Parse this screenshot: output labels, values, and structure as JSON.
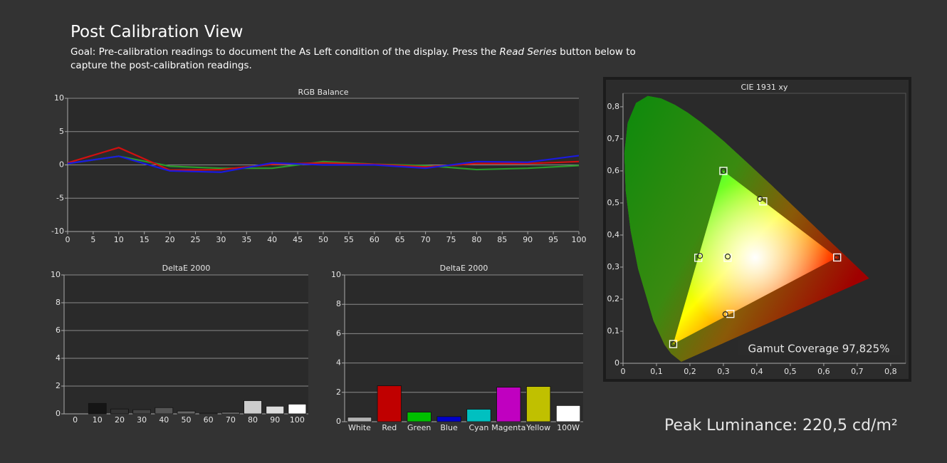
{
  "header": {
    "title": "Post Calibration View",
    "goal": [
      "Goal: Pre-calibration readings to document the As Left condition of the display. Press the ",
      "Read Series",
      " button below to capture the post-calibration readings."
    ]
  },
  "chart_data": [
    {
      "type": "line",
      "title": "RGB Balance",
      "x": [
        0,
        10,
        20,
        30,
        40,
        50,
        60,
        70,
        80,
        90,
        100
      ],
      "series": [
        {
          "color": "#2b9a2b",
          "values": [
            0.2,
            1.3,
            -0.2,
            -0.5,
            -0.5,
            0.5,
            0.1,
            -0.1,
            -0.7,
            -0.5,
            -0.1
          ]
        },
        {
          "color": "#d01010",
          "values": [
            0.3,
            2.6,
            -0.8,
            -0.7,
            0.1,
            0.3,
            0.1,
            -0.3,
            0.2,
            0.2,
            0.5
          ]
        },
        {
          "color": "#1a1ae0",
          "values": [
            0.2,
            1.3,
            -0.9,
            -1.1,
            0.3,
            0.0,
            0.0,
            -0.5,
            0.5,
            0.4,
            1.4
          ]
        }
      ],
      "xlim": [
        0,
        100
      ],
      "xticks": [
        0,
        5,
        10,
        15,
        20,
        25,
        30,
        35,
        40,
        45,
        50,
        55,
        60,
        65,
        70,
        75,
        80,
        85,
        90,
        95,
        100
      ],
      "ylim": [
        -10,
        10
      ],
      "yticks": [
        -10,
        -5,
        0,
        5,
        10
      ],
      "grid": true
    },
    {
      "type": "bar",
      "title": "DeltaE 2000",
      "categories": [
        "0",
        "10",
        "20",
        "30",
        "40",
        "50",
        "60",
        "70",
        "80",
        "90",
        "100"
      ],
      "values": [
        0,
        0.75,
        0.35,
        0.3,
        0.45,
        0.2,
        0.05,
        0.1,
        0.95,
        0.55,
        0.7
      ],
      "colors": [
        "#000000",
        "#151515",
        "#333333",
        "#444444",
        "#555555",
        "#666666",
        "#777777",
        "#999999",
        "#cccccc",
        "#dddddd",
        "#ffffff"
      ],
      "ylim": [
        0,
        10
      ],
      "yticks": [
        0,
        2,
        4,
        6,
        8,
        10
      ],
      "grid": true
    },
    {
      "type": "bar",
      "title": "DeltaE 2000",
      "categories": [
        "White",
        "Red",
        "Green",
        "Blue",
        "Cyan",
        "Magenta",
        "Yellow",
        "100W"
      ],
      "values": [
        0.3,
        2.45,
        0.65,
        0.35,
        0.85,
        2.35,
        2.4,
        1.1
      ],
      "colors": [
        "#b4b4b4",
        "#c00000",
        "#00c000",
        "#0000c8",
        "#00c0c0",
        "#c000c0",
        "#c0c000",
        "#ffffff"
      ],
      "ylim": [
        0,
        10
      ],
      "yticks": [
        0,
        2,
        4,
        6,
        8,
        10
      ],
      "grid": true
    },
    {
      "type": "scatter",
      "title": "CIE 1931 xy",
      "series": [
        {
          "marker": "square",
          "x": [
            0.64,
            0.3,
            0.15,
            0.3127,
            0.225,
            0.321,
            0.419
          ],
          "values": [
            0.33,
            0.6,
            0.06,
            0.329,
            0.329,
            0.154,
            0.505
          ]
        },
        {
          "marker": "circle",
          "x": [
            0.64,
            0.3,
            0.15,
            0.313,
            0.23,
            0.306,
            0.409
          ],
          "values": [
            0.33,
            0.6,
            0.06,
            0.333,
            0.335,
            0.153,
            0.513
          ]
        }
      ],
      "xlim": [
        0,
        0.845
      ],
      "xticks": [
        0,
        {
          "value": 0.1,
          "label": "0,1"
        },
        {
          "value": 0.2,
          "label": "0,2"
        },
        {
          "value": 0.3,
          "label": "0,3"
        },
        {
          "value": 0.4,
          "label": "0,4"
        },
        {
          "value": 0.5,
          "label": "0,5"
        },
        {
          "value": 0.6,
          "label": "0,6"
        },
        {
          "value": 0.7,
          "label": "0,7"
        },
        {
          "value": 0.8,
          "label": "0,8"
        }
      ],
      "ylim": [
        0,
        0.842
      ],
      "yticks": [
        0,
        {
          "value": 0.1,
          "label": "0,1"
        },
        {
          "value": 0.2,
          "label": "0,2"
        },
        {
          "value": 0.3,
          "label": "0,3"
        },
        {
          "value": 0.4,
          "label": "0,4"
        },
        {
          "value": 0.5,
          "label": "0,5"
        },
        {
          "value": 0.6,
          "label": "0,6"
        },
        {
          "value": 0.7,
          "label": "0,7"
        },
        {
          "value": 0.8,
          "label": "0,8"
        }
      ],
      "grid": false,
      "annotation": "Gamut Coverage 97,825%"
    }
  ],
  "footer": {
    "peak": "Peak Luminance: 220,5 cd/m²"
  }
}
